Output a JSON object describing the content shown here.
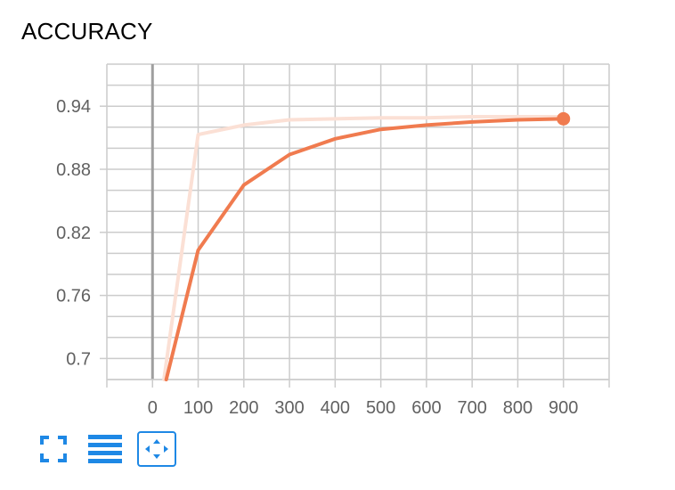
{
  "card": {
    "title": "ACCURACY"
  },
  "colors": {
    "accent": "#f07b4f",
    "raw_series": "#fbe0d5",
    "grid": "#cccccc",
    "zero_axis": "#9e9e9e",
    "toolbar_icon": "#1e88e5"
  },
  "chart_data": {
    "type": "line",
    "title": "ACCURACY",
    "xlabel": "",
    "ylabel": "",
    "xlim": [
      -100,
      1000
    ],
    "ylim": [
      0.68,
      0.98
    ],
    "xticks": [
      0,
      100,
      200,
      300,
      400,
      500,
      600,
      700,
      800,
      900
    ],
    "xtick_labels": [
      "0",
      "100",
      "200",
      "300",
      "400",
      "500",
      "600",
      "700",
      "800",
      "900"
    ],
    "yticks": [
      0.7,
      0.76,
      0.82,
      0.88,
      0.94
    ],
    "ytick_labels": [
      "0.7",
      "0.76",
      "0.82",
      "0.88",
      "0.94"
    ],
    "grid": true,
    "series": [
      {
        "role": "raw",
        "color": "#fbe0d5",
        "x": [
          25,
          100,
          200,
          300,
          400,
          500,
          600,
          700,
          800,
          900
        ],
        "y": [
          0.68,
          0.913,
          0.922,
          0.927,
          0.928,
          0.929,
          0.929,
          0.93,
          0.93,
          0.93
        ]
      },
      {
        "role": "smoothed",
        "color": "#f07b4f",
        "x": [
          30,
          100,
          200,
          300,
          400,
          500,
          600,
          700,
          800,
          900
        ],
        "y": [
          0.68,
          0.803,
          0.865,
          0.894,
          0.909,
          0.918,
          0.922,
          0.925,
          0.927,
          0.928
        ]
      }
    ]
  },
  "toolbar": {
    "items": [
      {
        "icon": "fullscreen-icon",
        "active": false
      },
      {
        "icon": "toggle-lines-icon",
        "active": false
      },
      {
        "icon": "fit-domain-icon",
        "active": true
      }
    ]
  }
}
